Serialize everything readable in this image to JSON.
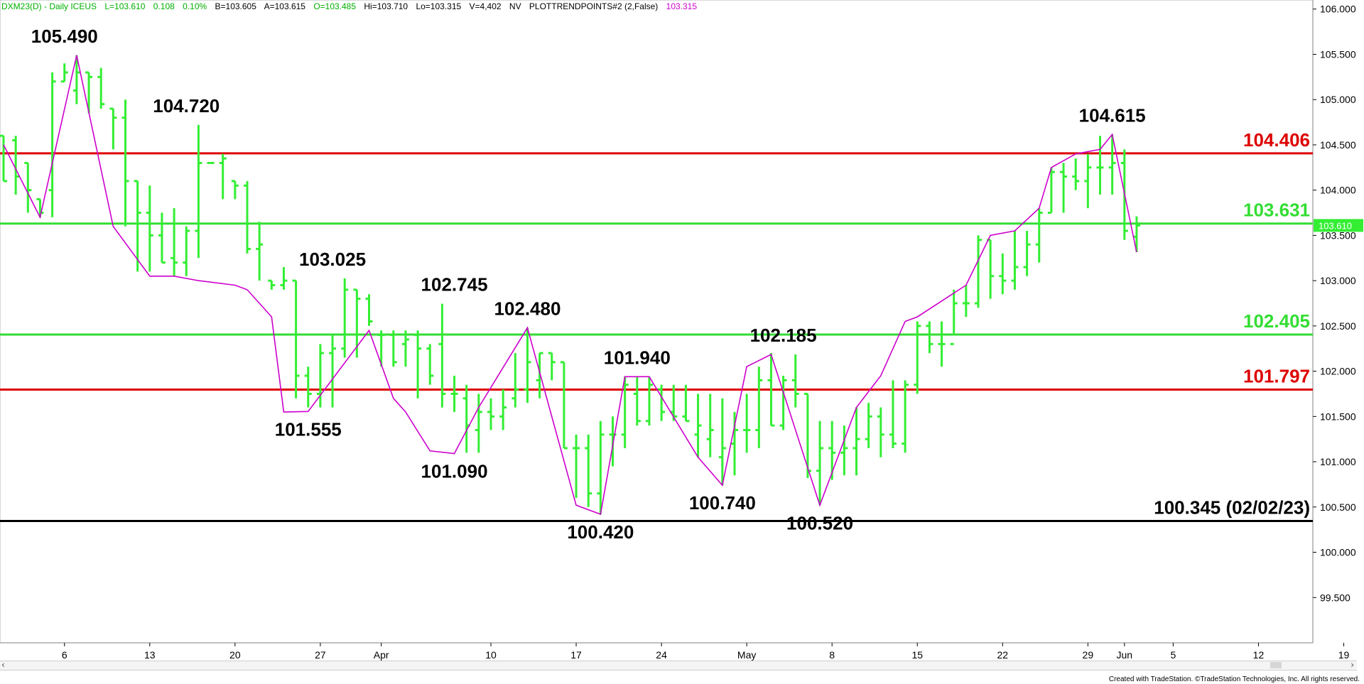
{
  "header": {
    "symbol": "DXM23(D) - Daily  ICEUS",
    "last": "L=103.610",
    "change": "0.108",
    "pct": "0.10%",
    "bid": "B=103.605",
    "ask": "A=103.615",
    "open": "O=103.485",
    "high": "Hi=103.710",
    "low": "Lo=103.315",
    "volume": "V=4,402",
    "nv": "NV",
    "study": "PLOTTRENDPOINTS#2 (2,False)",
    "study_value": "103.315"
  },
  "footer": {
    "credit": "Created with TradeStation. ©TradeStation Technologies, Inc. All rights reserved."
  },
  "scrollbar": {
    "left_arrow": "‹",
    "right_arrow": "›"
  },
  "colors": {
    "bar": "#33ee33",
    "trendline": "#cc00cc",
    "resistance": "#dd0000",
    "support": "#33dd33",
    "baseline": "#000000",
    "price_marker": "#33ee33",
    "header_green": "#00b000",
    "header_magenta": "#cc00cc"
  },
  "chart_data": {
    "type": "ohlc",
    "ylim": [
      99.0,
      106.1
    ],
    "y_ticks": [
      "106.000",
      "105.500",
      "105.000",
      "104.500",
      "104.000",
      "103.500",
      "103.000",
      "102.500",
      "102.000",
      "101.500",
      "101.000",
      "100.500",
      "100.000",
      "99.500"
    ],
    "y_tick_values": [
      106.0,
      105.5,
      105.0,
      104.5,
      104.0,
      103.5,
      103.0,
      102.5,
      102.0,
      101.5,
      101.0,
      100.5,
      100.0,
      99.5
    ],
    "x_ticks": [
      "6",
      "13",
      "20",
      "27",
      "Apr",
      "10",
      "17",
      "24",
      "May",
      "8",
      "15",
      "22",
      "29",
      "Jun",
      "5",
      "12",
      "19"
    ],
    "x_tick_days": [
      5,
      12,
      19,
      26,
      31,
      40,
      47,
      54,
      61,
      68,
      75,
      82,
      89,
      92,
      96,
      103,
      110
    ],
    "last_price_label": "103.610",
    "last_price": 103.61,
    "bars": [
      [
        0,
        104.6,
        104.6,
        104.1,
        104.1
      ],
      [
        1,
        104.55,
        104.6,
        103.95,
        104.15
      ],
      [
        2,
        104.3,
        104.3,
        103.75,
        104.0
      ],
      [
        3,
        103.9,
        103.9,
        103.7,
        103.75
      ],
      [
        4,
        104.0,
        105.3,
        103.7,
        105.2
      ],
      [
        5,
        105.2,
        105.4,
        105.2,
        105.3
      ],
      [
        6,
        105.1,
        105.49,
        104.95,
        105.3
      ],
      [
        7,
        105.3,
        105.3,
        104.85,
        105.25
      ],
      [
        8,
        105.25,
        105.35,
        104.9,
        104.95
      ],
      [
        9,
        104.9,
        104.9,
        104.45,
        104.8
      ],
      [
        10,
        104.8,
        105.0,
        103.6,
        104.1
      ],
      [
        11,
        104.1,
        104.1,
        103.1,
        103.75
      ],
      [
        12,
        103.75,
        104.05,
        103.1,
        103.5
      ],
      [
        13,
        103.5,
        103.75,
        103.2,
        103.2
      ],
      [
        14,
        103.25,
        103.8,
        103.05,
        103.2
      ],
      [
        15,
        103.2,
        103.6,
        103.05,
        103.55
      ],
      [
        16,
        103.55,
        104.72,
        103.25,
        104.3
      ],
      [
        17,
        104.3,
        104.3,
        104.3,
        104.3
      ],
      [
        18,
        104.3,
        104.4,
        103.9,
        104.35
      ],
      [
        19,
        104.1,
        104.1,
        103.9,
        104.05
      ],
      [
        20,
        104.05,
        104.1,
        103.3,
        103.35
      ],
      [
        21,
        103.35,
        103.65,
        103.0,
        103.4
      ],
      [
        22,
        103.0,
        103.0,
        102.9,
        102.95
      ],
      [
        23,
        102.95,
        103.15,
        102.9,
        103.0
      ],
      [
        24,
        103.0,
        103.0,
        101.7,
        101.95
      ],
      [
        25,
        101.95,
        102.05,
        101.6,
        101.75
      ],
      [
        26,
        101.75,
        102.3,
        101.6,
        102.2
      ],
      [
        27,
        102.2,
        102.4,
        101.6,
        102.25
      ],
      [
        28,
        102.25,
        103.025,
        102.15,
        102.9
      ],
      [
        29,
        102.9,
        102.9,
        102.15,
        102.8
      ],
      [
        30,
        102.8,
        102.85,
        102.5,
        102.55
      ],
      [
        31,
        102.4,
        102.45,
        102.05,
        102.4
      ],
      [
        32,
        102.4,
        102.45,
        102.05,
        102.1
      ],
      [
        33,
        102.3,
        102.45,
        102.05,
        102.35
      ],
      [
        34,
        102.4,
        102.45,
        101.7,
        102.25
      ],
      [
        35,
        102.25,
        102.3,
        101.85,
        101.95
      ],
      [
        36,
        102.3,
        102.745,
        101.6,
        101.75
      ],
      [
        37,
        101.75,
        101.95,
        101.55,
        101.75
      ],
      [
        38,
        101.7,
        101.85,
        101.1,
        101.4
      ],
      [
        39,
        101.35,
        101.75,
        101.1,
        101.55
      ],
      [
        40,
        101.55,
        101.7,
        101.35,
        101.5
      ],
      [
        41,
        101.5,
        101.8,
        101.35,
        101.6
      ],
      [
        42,
        101.7,
        102.2,
        101.6,
        101.8
      ],
      [
        43,
        101.8,
        102.48,
        101.65,
        102.1
      ],
      [
        44,
        101.9,
        102.2,
        101.7,
        102.2
      ],
      [
        45,
        102.2,
        102.2,
        101.9,
        102.1
      ],
      [
        46,
        102.1,
        102.1,
        101.15,
        101.15
      ],
      [
        47,
        101.15,
        101.3,
        100.6,
        101.15
      ],
      [
        48,
        101.15,
        101.3,
        100.5,
        100.65
      ],
      [
        49,
        100.65,
        101.45,
        100.42,
        101.3
      ],
      [
        50,
        101.3,
        101.5,
        100.95,
        101.3
      ],
      [
        51,
        101.3,
        101.94,
        101.15,
        101.85
      ],
      [
        52,
        101.75,
        101.94,
        101.4,
        101.45
      ],
      [
        53,
        101.45,
        101.94,
        101.4,
        101.85
      ],
      [
        54,
        101.8,
        101.85,
        101.45,
        101.55
      ],
      [
        55,
        101.55,
        101.85,
        101.45,
        101.5
      ],
      [
        56,
        101.5,
        101.85,
        101.45,
        101.45
      ],
      [
        57,
        101.3,
        101.75,
        101.05,
        101.4
      ],
      [
        58,
        101.25,
        101.75,
        101.05,
        101.35
      ],
      [
        59,
        101.05,
        101.7,
        100.74,
        101.15
      ],
      [
        60,
        101.2,
        101.55,
        100.85,
        101.35
      ],
      [
        61,
        101.35,
        101.75,
        101.1,
        101.35
      ],
      [
        62,
        101.35,
        102.05,
        101.15,
        101.9
      ],
      [
        63,
        101.9,
        102.2,
        101.4,
        101.4
      ],
      [
        64,
        101.4,
        101.95,
        101.35,
        101.9
      ],
      [
        65,
        101.9,
        102.185,
        101.6,
        101.75
      ],
      [
        66,
        101.75,
        101.75,
        100.82,
        100.9
      ],
      [
        67,
        100.9,
        101.45,
        100.52,
        101.15
      ],
      [
        68,
        101.15,
        101.45,
        100.8,
        101.1
      ],
      [
        69,
        101.1,
        101.4,
        100.85,
        101.15
      ],
      [
        70,
        101.15,
        101.6,
        100.85,
        101.25
      ],
      [
        71,
        101.25,
        101.65,
        101.15,
        101.5
      ],
      [
        72,
        101.5,
        101.6,
        101.05,
        101.3
      ],
      [
        73,
        101.3,
        101.9,
        101.15,
        101.2
      ],
      [
        74,
        101.2,
        101.9,
        101.1,
        101.85
      ],
      [
        75,
        101.85,
        102.55,
        101.75,
        102.5
      ],
      [
        76,
        102.5,
        102.55,
        102.2,
        102.3
      ],
      [
        77,
        102.3,
        102.55,
        102.05,
        102.3
      ],
      [
        78,
        102.3,
        102.9,
        102.4,
        102.75
      ],
      [
        79,
        102.75,
        102.95,
        102.6,
        102.75
      ],
      [
        80,
        102.75,
        103.5,
        102.7,
        103.45
      ],
      [
        81,
        103.45,
        103.45,
        102.8,
        103.05
      ],
      [
        82,
        103.05,
        103.3,
        102.85,
        103.0
      ],
      [
        83,
        103.0,
        103.55,
        102.9,
        103.15
      ],
      [
        84,
        103.15,
        103.55,
        103.05,
        103.4
      ],
      [
        85,
        103.4,
        103.8,
        103.2,
        103.75
      ],
      [
        86,
        103.75,
        104.25,
        103.75,
        104.2
      ],
      [
        87,
        104.2,
        104.3,
        103.75,
        104.15
      ],
      [
        88,
        104.15,
        104.35,
        104.0,
        104.1
      ],
      [
        89,
        104.1,
        104.4,
        103.8,
        104.25
      ],
      [
        90,
        104.25,
        104.6,
        103.95,
        104.25
      ],
      [
        91,
        104.25,
        104.615,
        103.95,
        104.3
      ],
      [
        92,
        104.3,
        104.45,
        103.45,
        103.55
      ],
      [
        93,
        103.485,
        103.71,
        103.315,
        103.61
      ]
    ],
    "trendline": [
      [
        0,
        104.5
      ],
      [
        3,
        103.7
      ],
      [
        6,
        105.49
      ],
      [
        9,
        103.6
      ],
      [
        12,
        103.05
      ],
      [
        14,
        103.05
      ],
      [
        16,
        103.0
      ],
      [
        19,
        102.95
      ],
      [
        20,
        102.9
      ],
      [
        22,
        102.6
      ],
      [
        23,
        101.55
      ],
      [
        25,
        101.555
      ],
      [
        30,
        102.45
      ],
      [
        32,
        101.7
      ],
      [
        33,
        101.55
      ],
      [
        35,
        101.12
      ],
      [
        37,
        101.09
      ],
      [
        39,
        101.6
      ],
      [
        43,
        102.48
      ],
      [
        47,
        100.52
      ],
      [
        49,
        100.42
      ],
      [
        51,
        101.94
      ],
      [
        53,
        101.94
      ],
      [
        57,
        101.05
      ],
      [
        59,
        100.74
      ],
      [
        61,
        102.05
      ],
      [
        63,
        102.185
      ],
      [
        67,
        100.52
      ],
      [
        70,
        101.6
      ],
      [
        72,
        101.95
      ],
      [
        74,
        102.55
      ],
      [
        75,
        102.6
      ],
      [
        79,
        102.95
      ],
      [
        81,
        103.5
      ],
      [
        83,
        103.55
      ],
      [
        85,
        103.8
      ],
      [
        86,
        104.25
      ],
      [
        88,
        104.4
      ],
      [
        90,
        104.45
      ],
      [
        91,
        104.615
      ],
      [
        93,
        103.315
      ]
    ],
    "pivot_labels": [
      {
        "label": "105.490",
        "day": 5,
        "value": 105.49,
        "pos": "above"
      },
      {
        "label": "104.720",
        "day": 15,
        "value": 104.72,
        "pos": "above"
      },
      {
        "label": "103.025",
        "day": 27,
        "value": 103.025,
        "pos": "above"
      },
      {
        "label": "101.555",
        "day": 25,
        "value": 101.555,
        "pos": "below"
      },
      {
        "label": "102.745",
        "day": 37,
        "value": 102.745,
        "pos": "above"
      },
      {
        "label": "101.090",
        "day": 37,
        "value": 101.09,
        "pos": "below"
      },
      {
        "label": "102.480",
        "day": 43,
        "value": 102.48,
        "pos": "above"
      },
      {
        "label": "100.420",
        "day": 49,
        "value": 100.42,
        "pos": "below"
      },
      {
        "label": "101.940",
        "day": 52,
        "value": 101.94,
        "pos": "above"
      },
      {
        "label": "100.740",
        "day": 59,
        "value": 100.74,
        "pos": "below"
      },
      {
        "label": "102.185",
        "day": 64,
        "value": 102.185,
        "pos": "above"
      },
      {
        "label": "100.520",
        "day": 67,
        "value": 100.52,
        "pos": "below"
      },
      {
        "label": "104.615",
        "day": 91,
        "value": 104.615,
        "pos": "above"
      }
    ],
    "levels": [
      {
        "label": "104.406",
        "value": 104.406,
        "kind": "resistance"
      },
      {
        "label": "103.631",
        "value": 103.631,
        "kind": "support"
      },
      {
        "label": "102.405",
        "value": 102.405,
        "kind": "support"
      },
      {
        "label": "101.797",
        "value": 101.797,
        "kind": "resistance"
      },
      {
        "label": "100.345 (02/02/23)",
        "value": 100.345,
        "kind": "baseline"
      }
    ]
  }
}
